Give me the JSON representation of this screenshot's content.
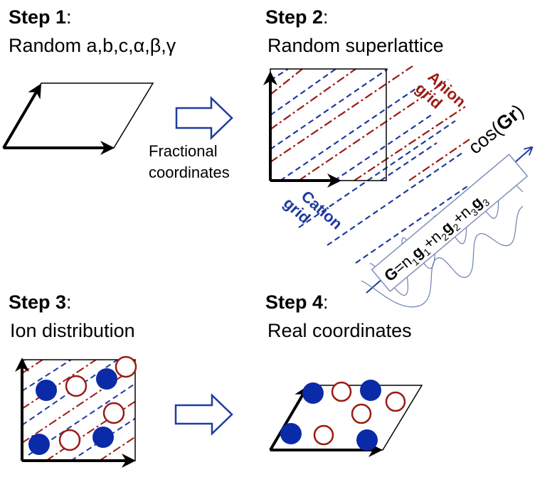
{
  "colors": {
    "anion": "#9b1b14",
    "cation": "#1e3a9e",
    "cation_fill": "#0a2aa8",
    "arrow_outline": "#1f3ca0",
    "wave": "#6a7fb5",
    "outline": "#000000"
  },
  "step1": {
    "title_bold": "Step 1",
    "title_colon": ":",
    "subtitle": "Random a,b,c,α,β,γ"
  },
  "step2": {
    "title_bold": "Step 2",
    "title_colon": ":",
    "subtitle": "Random superlattice",
    "anion_label_1": "Anion",
    "anion_label_2": "grid",
    "cation_label_1": "Cation",
    "cation_label_2": "grid",
    "wave_label_pre": "cos(",
    "wave_label_bold": "Gr",
    "wave_label_post": ")",
    "formula": {
      "G": "G",
      "eq": "=n",
      "s1": "1",
      "g1": "g",
      "gs1": "1",
      "p1": "+n",
      "s2": "2",
      "g2": "g",
      "gs2": "2",
      "p2": "+n",
      "s3": "3",
      "g3": "g",
      "gs3": "3"
    }
  },
  "step3": {
    "title_bold": "Step 3",
    "title_colon": ":",
    "subtitle": "Ion distribution"
  },
  "step4": {
    "title_bold": "Step 4",
    "title_colon": ":",
    "subtitle": "Real coordinates"
  },
  "transition1": {
    "caption_line1": "Fractional",
    "caption_line2": "coordinates"
  }
}
